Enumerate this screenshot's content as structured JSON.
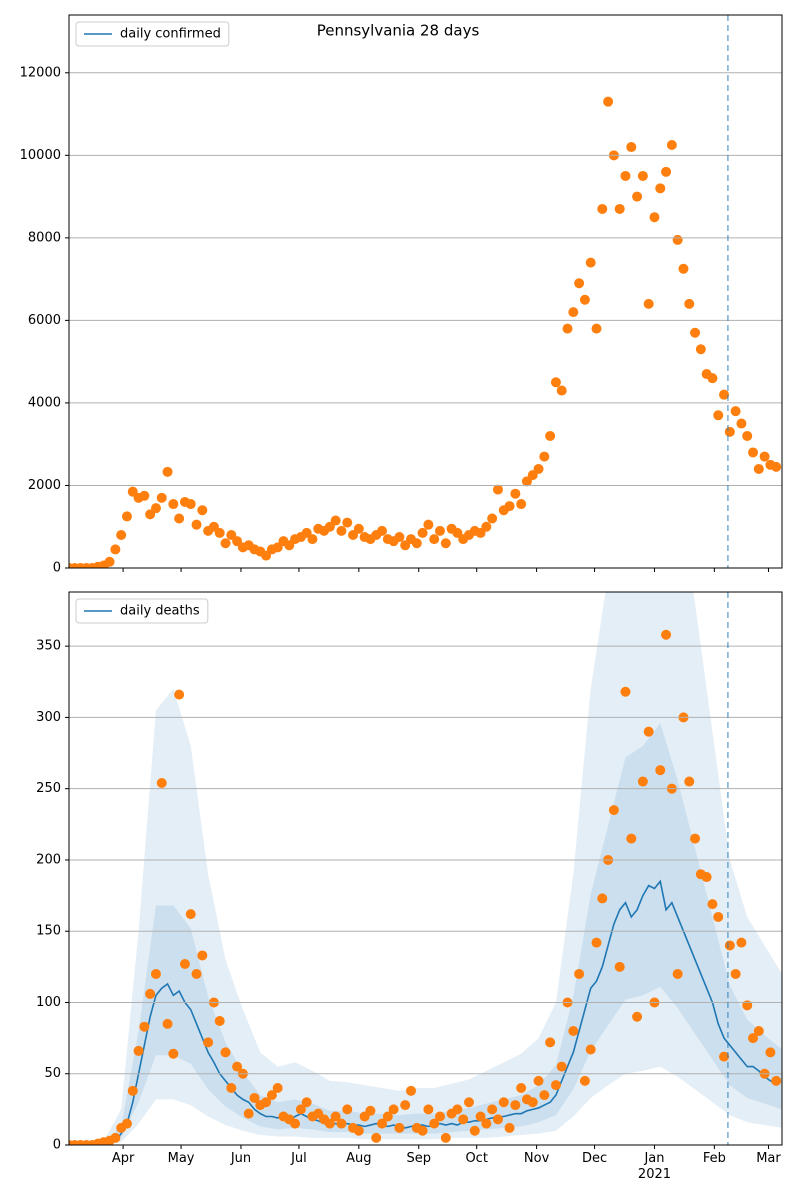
{
  "chart_data": [
    {
      "type": "scatter",
      "title": "Pennsylvania 28 days",
      "series": [
        {
          "name": "daily confirmed",
          "color": "#1f77b4"
        }
      ],
      "legend": "upper left",
      "points": {
        "color": "#ff7f0e",
        "x": [
          3,
          6,
          9,
          12,
          15,
          18,
          21,
          24,
          27,
          30,
          33,
          36,
          39,
          42,
          45,
          48,
          51,
          54,
          57,
          60,
          63,
          66,
          69,
          72,
          75,
          78,
          81,
          84,
          87,
          90,
          93,
          96,
          99,
          102,
          105,
          108,
          111,
          114,
          117,
          120,
          123,
          126,
          129,
          132,
          135,
          138,
          141,
          144,
          147,
          150,
          153,
          156,
          159,
          162,
          165,
          168,
          171,
          174,
          177,
          180,
          183,
          186,
          189,
          192,
          195,
          198,
          201,
          204,
          207,
          210,
          213,
          216,
          219,
          222,
          225,
          228,
          231,
          234,
          237,
          240,
          243,
          246,
          249,
          252,
          255,
          258,
          261,
          264,
          267,
          270,
          273,
          276,
          279,
          282,
          285,
          288,
          291,
          294,
          297,
          300,
          303,
          306,
          309,
          312,
          315,
          318,
          321,
          324,
          327,
          330,
          333,
          336,
          339,
          342,
          345,
          348,
          351,
          354,
          357,
          360,
          363,
          366,
          369
        ],
        "values": [
          0,
          0,
          0,
          0,
          0,
          30,
          60,
          150,
          450,
          800,
          1250,
          1850,
          1700,
          1750,
          1300,
          1450,
          1700,
          2330,
          1550,
          1200,
          1600,
          1550,
          1050,
          1400,
          900,
          1000,
          850,
          600,
          800,
          650,
          500,
          550,
          450,
          400,
          300,
          450,
          500,
          650,
          550,
          700,
          750,
          850,
          700,
          950,
          900,
          1000,
          1150,
          900,
          1100,
          800,
          950,
          750,
          700,
          800,
          900,
          700,
          650,
          750,
          550,
          700,
          600,
          850,
          1050,
          700,
          900,
          600,
          950,
          850,
          700,
          800,
          900,
          850,
          1000,
          1200,
          1900,
          1400,
          1500,
          1800,
          1550,
          2100,
          2250,
          2400,
          2700,
          3200,
          4500,
          4300,
          5800,
          6200,
          6900,
          6500,
          7400,
          5800,
          8700,
          11300,
          10000,
          8700,
          9500,
          10200,
          9000,
          9500,
          6400,
          8500,
          9200,
          9600,
          10250,
          7950,
          7250,
          6400,
          5700,
          5300,
          4700,
          4600,
          3700,
          4200,
          3300,
          3800,
          3500,
          3200,
          2800,
          2400,
          2700,
          2500,
          2450
        ]
      },
      "vline": 344,
      "xlim": [
        3,
        372
      ],
      "ylim": [
        0,
        13400
      ],
      "yticks": [
        0,
        2000,
        4000,
        6000,
        8000,
        10000,
        12000
      ],
      "grid": true
    },
    {
      "type": "line",
      "legend": "upper left",
      "x": [
        3,
        6,
        9,
        12,
        15,
        18,
        21,
        24,
        27,
        30,
        33,
        36,
        39,
        42,
        45,
        48,
        51,
        54,
        57,
        60,
        63,
        66,
        69,
        72,
        75,
        78,
        81,
        84,
        87,
        90,
        93,
        96,
        99,
        102,
        105,
        108,
        111,
        114,
        117,
        120,
        123,
        126,
        129,
        132,
        135,
        138,
        141,
        144,
        147,
        150,
        153,
        156,
        159,
        162,
        165,
        168,
        171,
        174,
        177,
        180,
        183,
        186,
        189,
        192,
        195,
        198,
        201,
        204,
        207,
        210,
        213,
        216,
        219,
        222,
        225,
        228,
        231,
        234,
        237,
        240,
        243,
        246,
        249,
        252,
        255,
        258,
        261,
        264,
        267,
        270,
        273,
        276,
        279,
        282,
        285,
        288,
        291,
        294,
        297,
        300,
        303,
        306,
        309,
        312,
        315,
        318,
        321,
        324,
        327,
        330,
        333,
        336,
        339,
        342,
        345,
        348,
        351,
        354,
        357,
        360,
        363,
        366,
        369
      ],
      "series": [
        {
          "name": "daily deaths",
          "color": "#1f77b4",
          "values": [
            0,
            0,
            0,
            0,
            0,
            1,
            1,
            2,
            3,
            8,
            15,
            30,
            50,
            70,
            90,
            105,
            110,
            113,
            105,
            108,
            100,
            95,
            85,
            75,
            65,
            58,
            50,
            45,
            40,
            35,
            32,
            30,
            25,
            22,
            20,
            20,
            19,
            20,
            18,
            20,
            22,
            20,
            18,
            17,
            15,
            15,
            15,
            14,
            15,
            14,
            14,
            13,
            14,
            15,
            14,
            13,
            14,
            13,
            12,
            13,
            14,
            14,
            13,
            14,
            15,
            14,
            15,
            14,
            16,
            16,
            17,
            17,
            18,
            19,
            20,
            20,
            21,
            22,
            22,
            24,
            25,
            26,
            28,
            30,
            35,
            45,
            55,
            65,
            80,
            95,
            110,
            115,
            125,
            140,
            155,
            165,
            170,
            160,
            165,
            175,
            182,
            180,
            185,
            165,
            170,
            160,
            150,
            140,
            130,
            120,
            110,
            100,
            85,
            75,
            70,
            65,
            60,
            55,
            55,
            52,
            48,
            45,
            43
          ]
        }
      ],
      "points": {
        "color": "#ff7f0e",
        "values": [
          0,
          0,
          0,
          0,
          0,
          1,
          2,
          3,
          5,
          12,
          15,
          38,
          66,
          83,
          106,
          120,
          254,
          85,
          64,
          316,
          127,
          162,
          120,
          133,
          72,
          100,
          87,
          65,
          40,
          55,
          50,
          22,
          33,
          28,
          30,
          35,
          40,
          20,
          18,
          15,
          25,
          30,
          20,
          22,
          18,
          15,
          20,
          15,
          25,
          12,
          10,
          20,
          24,
          5,
          15,
          20,
          25,
          12,
          28,
          38,
          12,
          10,
          25,
          15,
          20,
          5,
          22,
          25,
          18,
          30,
          10,
          20,
          15,
          25,
          18,
          30,
          12,
          28,
          40,
          32,
          30,
          45,
          35,
          72,
          42,
          55,
          100,
          80,
          120,
          45,
          67,
          142,
          173,
          200,
          235,
          125,
          318,
          215,
          90,
          255,
          290,
          100,
          263,
          358,
          250,
          120,
          300,
          255,
          215,
          190,
          188,
          169,
          160,
          62,
          140,
          120,
          142,
          98,
          75,
          80,
          50,
          65,
          45
        ]
      },
      "bands": {
        "color": "#1f77b4",
        "x": [
          3,
          12,
          21,
          30,
          39,
          48,
          57,
          66,
          75,
          84,
          93,
          102,
          111,
          120,
          129,
          138,
          147,
          156,
          165,
          174,
          183,
          192,
          201,
          210,
          219,
          228,
          237,
          246,
          255,
          264,
          273,
          282,
          291,
          300,
          309,
          318,
          327,
          336,
          345,
          354,
          363,
          372
        ],
        "levels": [
          {
            "lower": [
              0,
              0,
              0,
              2,
              15,
              32,
              32,
              28,
              20,
              14,
              10,
              7,
              6,
              6,
              5,
              5,
              5,
              4,
              4,
              4,
              4,
              4,
              5,
              5,
              5,
              6,
              7,
              8,
              10,
              20,
              33,
              42,
              50,
              52,
              55,
              48,
              39,
              30,
              21,
              16,
              14,
              12
            ],
            "upper": [
              0,
              1,
              3,
              25,
              150,
              305,
              320,
              280,
              190,
              130,
              95,
              65,
              55,
              58,
              52,
              45,
              44,
              42,
              40,
              38,
              40,
              40,
              43,
              46,
              52,
              58,
              64,
              75,
              100,
              190,
              320,
              400,
              480,
              500,
              520,
              460,
              380,
              290,
              200,
              160,
              140,
              120
            ]
          },
          {
            "lower": [
              0,
              0,
              1,
              5,
              30,
              63,
              63,
              57,
              39,
              27,
              19,
              13,
              11,
              12,
              11,
              9,
              9,
              8,
              8,
              8,
              8,
              8,
              9,
              10,
              11,
              12,
              13,
              16,
              21,
              39,
              66,
              84,
              102,
              105,
              111,
              96,
              78,
              60,
              42,
              33,
              29,
              25
            ],
            "upper": [
              0,
              0,
              2,
              13,
              80,
              168,
              168,
              152,
              104,
              72,
              51,
              35,
              30,
              32,
              29,
              24,
              24,
              22,
              22,
              21,
              22,
              22,
              24,
              26,
              29,
              32,
              35,
              42,
              56,
              104,
              176,
              224,
              272,
              280,
              296,
              256,
              208,
              160,
              112,
              88,
              77,
              67
            ]
          }
        ]
      },
      "vline": 344,
      "xlim": [
        3,
        372
      ],
      "xticks": [
        {
          "value": 31,
          "label": "Apr"
        },
        {
          "value": 61,
          "label": "May"
        },
        {
          "value": 92,
          "label": "Jun"
        },
        {
          "value": 122,
          "label": "Jul"
        },
        {
          "value": 153,
          "label": "Aug"
        },
        {
          "value": 184,
          "label": "Sep"
        },
        {
          "value": 214,
          "label": "Oct"
        },
        {
          "value": 245,
          "label": "Nov"
        },
        {
          "value": 275,
          "label": "Dec"
        },
        {
          "value": 306,
          "label": "Jan\n2021"
        },
        {
          "value": 337,
          "label": "Feb"
        },
        {
          "value": 365,
          "label": "Mar"
        }
      ],
      "ylim": [
        0,
        388
      ],
      "yticks": [
        0,
        50,
        100,
        150,
        200,
        250,
        300,
        350
      ],
      "grid": true
    }
  ]
}
